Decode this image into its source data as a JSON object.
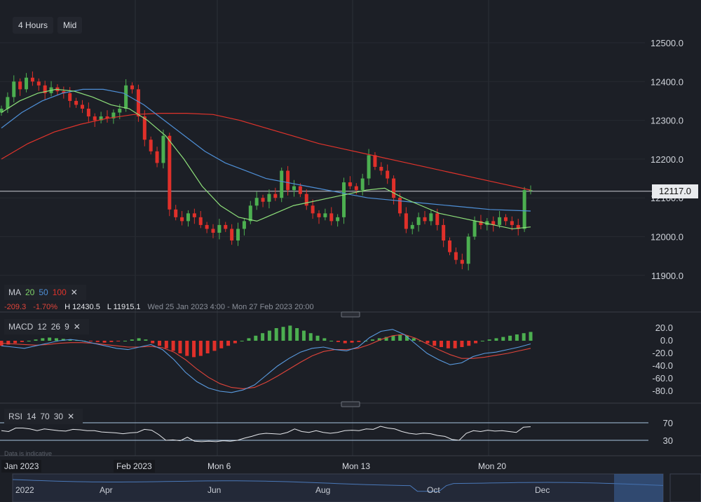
{
  "toolbar": {
    "interval": "4 Hours",
    "price_type": "Mid"
  },
  "ma_legend": {
    "label": "MA",
    "p1": "20",
    "p2": "50",
    "p3": "100",
    "close": "✕"
  },
  "stats": {
    "change": "-209.3",
    "change_pct": "-1.70%",
    "high": "H 12430.5",
    "low": "L 11915.1",
    "range": "Wed 25 Jan 2023 4:00 - Mon 27 Feb 2023 20:00"
  },
  "macd_legend": {
    "label": "MACD",
    "p1": "12",
    "p2": "26",
    "p3": "9",
    "close": "✕"
  },
  "rsi_legend": {
    "label": "RSI",
    "p1": "14",
    "p2": "70",
    "p3": "30",
    "close": "✕"
  },
  "note": "Data is indicative",
  "current_price": "12117.0",
  "x_labels": [
    "Jan 2023",
    "Feb 2023",
    "Mon 6",
    "Mon 13",
    "Mon 20"
  ],
  "navigator_labels": [
    "2022",
    "Apr",
    "Jun",
    "Aug",
    "Oct",
    "Dec"
  ],
  "colors": {
    "up": "#4caf50",
    "down": "#e0302a",
    "ma20": "#8ee07a",
    "ma50": "#4e8fd6",
    "ma100": "#e0332b",
    "macd": "#5a9be0",
    "signal": "#e0443a"
  },
  "chart_data": {
    "type": "candlestick",
    "price_axis": {
      "ticks": [
        "12500.0",
        "12400.0",
        "12300.0",
        "12200.0",
        "12100.0",
        "12000.0",
        "11900.0"
      ],
      "range": [
        11830,
        12580
      ]
    },
    "closes": [
      12330,
      12360,
      12400,
      12380,
      12410,
      12400,
      12390,
      12370,
      12385,
      12375,
      12370,
      12350,
      12340,
      12330,
      12310,
      12300,
      12310,
      12305,
      12320,
      12330,
      12390,
      12380,
      12310,
      12250,
      12220,
      12190,
      12260,
      12070,
      12050,
      12040,
      12060,
      12050,
      12030,
      12020,
      12010,
      12030,
      12020,
      11990,
      12020,
      12040,
      12080,
      12100,
      12090,
      12110,
      12100,
      12170,
      12120,
      12130,
      12110,
      12080,
      12060,
      12050,
      12060,
      12040,
      12050,
      12140,
      12130,
      12120,
      12150,
      12210,
      12180,
      12170,
      12150,
      12100,
      12060,
      12020,
      12030,
      12050,
      12040,
      12060,
      12030,
      11990,
      11960,
      11940,
      11930,
      12000,
      12040,
      12030,
      12040,
      12030,
      12050,
      12040,
      12030,
      12020,
      12120,
      12120
    ],
    "ma20": [
      12320,
      12350,
      12370,
      12380,
      12375,
      12360,
      12340,
      12330,
      12300,
      12260,
      12200,
      12130,
      12080,
      12050,
      12040,
      12060,
      12080,
      12090,
      12100,
      12110,
      12120,
      12125,
      12100,
      12080,
      12060,
      12050,
      12040,
      12030,
      12020,
      12025
    ],
    "ma50": [
      12280,
      12320,
      12350,
      12370,
      12380,
      12380,
      12370,
      12340,
      12300,
      12260,
      12220,
      12190,
      12170,
      12150,
      12140,
      12130,
      12120,
      12110,
      12100,
      12095,
      12090,
      12085,
      12080,
      12075,
      12070,
      12068,
      12066
    ],
    "ma100": [
      12200,
      12240,
      12270,
      12290,
      12305,
      12315,
      12318,
      12318,
      12315,
      12300,
      12280,
      12260,
      12240,
      12225,
      12210,
      12195,
      12180,
      12165,
      12150,
      12135,
      12120
    ],
    "macd": {
      "ticks": [
        "20.0",
        "0.0",
        "-20.0",
        "-40.0",
        "-60.0",
        "-80.0"
      ],
      "range": [
        -88,
        28
      ],
      "hist": [
        -8,
        -6,
        -4,
        -2,
        0,
        2,
        4,
        5,
        4,
        3,
        2,
        1,
        0,
        -1,
        -2,
        -3,
        -2,
        -1,
        0,
        2,
        4,
        2,
        -4,
        -8,
        -12,
        -16,
        -20,
        -24,
        -26,
        -24,
        -20,
        -16,
        -12,
        -8,
        -4,
        0,
        4,
        8,
        12,
        16,
        20,
        22,
        24,
        20,
        16,
        12,
        8,
        4,
        0,
        -2,
        -4,
        -3,
        -2,
        0,
        2,
        4,
        6,
        8,
        10,
        8,
        4,
        0,
        -4,
        -8,
        -10,
        -12,
        -12,
        -10,
        -8,
        -4,
        0,
        2,
        4,
        6,
        8,
        10,
        12,
        14
      ],
      "macd_line": [
        -8,
        -10,
        -12,
        -8,
        -4,
        0,
        2,
        0,
        -4,
        -8,
        -12,
        -14,
        -10,
        -6,
        -14,
        -30,
        -50,
        -65,
        -75,
        -80,
        -82,
        -78,
        -70,
        -55,
        -40,
        -28,
        -18,
        -12,
        -10,
        -14,
        -16,
        -10,
        5,
        15,
        18,
        10,
        -5,
        -20,
        -30,
        -38,
        -35,
        -25,
        -20,
        -18,
        -14,
        -10,
        -5
      ],
      "signal_line": [
        -4,
        -5,
        -6,
        -7,
        -6,
        -4,
        -3,
        -3,
        -4,
        -6,
        -8,
        -10,
        -10,
        -9,
        -11,
        -18,
        -30,
        -45,
        -58,
        -68,
        -74,
        -76,
        -74,
        -66,
        -56,
        -45,
        -34,
        -24,
        -17,
        -14,
        -14,
        -12,
        -6,
        2,
        8,
        10,
        4,
        -5,
        -14,
        -22,
        -28,
        -28,
        -26,
        -23,
        -20,
        -16,
        -12
      ]
    },
    "rsi": {
      "levels": [
        70,
        30
      ],
      "values": [
        52,
        50,
        58,
        58,
        56,
        52,
        56,
        54,
        52,
        51,
        55,
        54,
        52,
        52,
        49,
        48,
        47,
        45,
        47,
        48,
        55,
        53,
        43,
        30,
        31,
        29,
        37,
        28,
        27,
        28,
        27,
        29,
        28,
        30,
        35,
        39,
        44,
        46,
        45,
        44,
        48,
        56,
        50,
        48,
        52,
        48,
        46,
        48,
        52,
        53,
        52,
        56,
        55,
        62,
        58,
        56,
        50,
        46,
        44,
        46,
        45,
        41,
        39,
        32,
        30,
        46,
        52,
        50,
        53,
        51,
        52,
        50,
        48,
        60,
        61
      ]
    }
  }
}
